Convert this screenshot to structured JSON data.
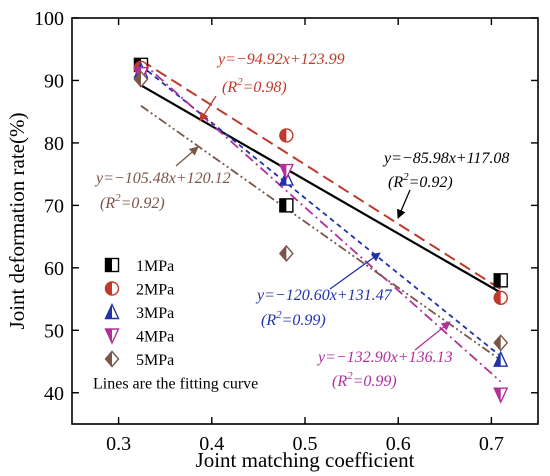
{
  "chart_data": {
    "type": "scatter",
    "xlabel": "Joint matching coefficient",
    "ylabel": "Joint deformation rate(%)",
    "xlim": [
      0.25,
      0.75
    ],
    "ylim": [
      35,
      100
    ],
    "xticks": [
      0.3,
      0.4,
      0.5,
      0.6,
      0.7
    ],
    "xtick_labels": [
      "0.3",
      "0.4",
      "0.5",
      "0.6",
      "0.7"
    ],
    "yticks": [
      40,
      50,
      60,
      70,
      80,
      90,
      100
    ],
    "ytick_labels": [
      "40",
      "50",
      "60",
      "70",
      "80",
      "90",
      "100"
    ],
    "grid": false,
    "legend_position": "bottom-left",
    "legend_note": "Lines are the fitting curve",
    "series": [
      {
        "name": "1MPa",
        "color": "#000000",
        "marker": "half-square",
        "points": [
          [
            0.324,
            92.5
          ],
          [
            0.48,
            70.0
          ],
          [
            0.71,
            58.0
          ]
        ],
        "fit": {
          "slope": -85.98,
          "intercept": 117.08,
          "style": "solid"
        },
        "equation": "y=−85.98x+117.08",
        "r2": "(R",
        "r2_sup": "2",
        "r2_val": "=0.92)"
      },
      {
        "name": "2MPa",
        "color": "#c0392b",
        "marker": "half-circle",
        "points": [
          [
            0.324,
            92.0
          ],
          [
            0.48,
            81.2
          ],
          [
            0.71,
            55.2
          ]
        ],
        "fit": {
          "slope": -94.92,
          "intercept": 123.99,
          "style": "dash"
        },
        "equation": "y=−94.92x+123.99",
        "r2": "(R",
        "r2_sup": "2",
        "r2_val": "=0.98)"
      },
      {
        "name": "3MPa",
        "color": "#2233aa",
        "marker": "half-triangle-up",
        "points": [
          [
            0.324,
            91.5
          ],
          [
            0.48,
            74.3
          ],
          [
            0.71,
            45.3
          ]
        ],
        "fit": {
          "slope": -120.6,
          "intercept": 131.47,
          "style": "shortdash"
        },
        "equation": "y=−120.60x+131.47",
        "r2": "(R",
        "r2_sup": "2",
        "r2_val": "=0.99)"
      },
      {
        "name": "4MPa",
        "color": "#b0309a",
        "marker": "half-triangle-down",
        "points": [
          [
            0.324,
            91.0
          ],
          [
            0.48,
            75.5
          ],
          [
            0.71,
            39.7
          ]
        ],
        "fit": {
          "slope": -132.9,
          "intercept": 136.13,
          "style": "dashdot"
        },
        "equation": "y=−132.90x+136.13",
        "r2": "(R",
        "r2_sup": "2",
        "r2_val": "=0.99)"
      },
      {
        "name": "5MPa",
        "color": "#7a5548",
        "marker": "half-diamond",
        "points": [
          [
            0.324,
            90.2
          ],
          [
            0.48,
            62.3
          ],
          [
            0.71,
            48.0
          ]
        ],
        "fit": {
          "slope": -105.48,
          "intercept": 120.12,
          "style": "dashdotdot"
        },
        "equation": "y=−105.48x+120.12",
        "r2": "(R",
        "r2_sup": "2",
        "r2_val": "=0.92)"
      }
    ]
  }
}
